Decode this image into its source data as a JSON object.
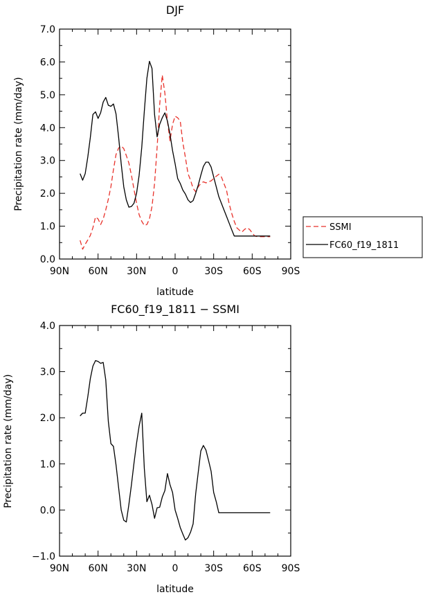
{
  "chart_data": [
    {
      "type": "line",
      "title": "DJF",
      "xlabel": "latitude",
      "ylabel": "Precipitation rate (mm/day)",
      "xlim": [
        -90,
        90
      ],
      "ylim": [
        0,
        7
      ],
      "xticks": [
        -90,
        -60,
        -30,
        0,
        30,
        60,
        90
      ],
      "xtick_labels": [
        "90N",
        "60N",
        "30N",
        "0",
        "30S",
        "60S",
        "90S"
      ],
      "yticks": [
        0,
        1,
        2,
        3,
        4,
        5,
        6,
        7
      ],
      "ytick_labels": [
        "0.0",
        "1.0",
        "2.0",
        "3.0",
        "4.0",
        "5.0",
        "6.0",
        "7.0"
      ],
      "legend": {
        "position": "right",
        "entries": [
          "SSMI",
          "FC60_f19_1811"
        ]
      },
      "series": [
        {
          "name": "SSMI",
          "color": "#e8312a",
          "dash": "dashed",
          "x": [
            -74,
            -72,
            -70,
            -68,
            -66,
            -64,
            -62,
            -60,
            -58,
            -56,
            -54,
            -52,
            -50,
            -48,
            -46,
            -44,
            -42,
            -40,
            -38,
            -36,
            -34,
            -32,
            -30,
            -28,
            -26,
            -24,
            -22,
            -20,
            -18,
            -16,
            -14,
            -12,
            -10,
            -8,
            -6,
            -4,
            -2,
            0,
            2,
            4,
            6,
            8,
            10,
            12,
            14,
            16,
            18,
            20,
            22,
            24,
            26,
            28,
            30,
            32,
            34,
            36,
            38,
            40,
            42,
            44,
            46,
            48,
            50,
            52,
            54,
            56,
            58,
            60,
            62,
            64,
            66,
            68,
            70,
            72,
            74
          ],
          "y": [
            0.57,
            0.3,
            0.45,
            0.58,
            0.72,
            0.95,
            1.28,
            1.22,
            1.05,
            1.22,
            1.5,
            1.82,
            2.2,
            2.72,
            3.18,
            3.38,
            3.44,
            3.36,
            3.15,
            2.92,
            2.55,
            2.12,
            1.7,
            1.35,
            1.15,
            1.02,
            1.05,
            1.22,
            1.6,
            2.3,
            3.4,
            4.7,
            5.6,
            5.05,
            4.2,
            3.6,
            4.1,
            4.35,
            4.3,
            4.2,
            3.55,
            3.1,
            2.6,
            2.4,
            2.15,
            2.05,
            2.2,
            2.3,
            2.35,
            2.32,
            2.35,
            2.38,
            2.45,
            2.52,
            2.58,
            2.5,
            2.3,
            2.1,
            1.7,
            1.4,
            1.15,
            0.95,
            0.88,
            0.82,
            0.9,
            0.95,
            0.9,
            0.8,
            0.7,
            0.68,
            0.68,
            0.68,
            0.68,
            0.68,
            0.68
          ]
        },
        {
          "name": "FC60_f19_1811",
          "color": "#000000",
          "dash": "solid",
          "x": [
            -74,
            -72,
            -70,
            -68,
            -66,
            -64,
            -62,
            -60,
            -58,
            -56,
            -54,
            -52,
            -50,
            -48,
            -46,
            -44,
            -42,
            -40,
            -38,
            -36,
            -34,
            -32,
            -30,
            -28,
            -26,
            -24,
            -22,
            -20,
            -18,
            -16,
            -14,
            -12,
            -10,
            -8,
            -6,
            -4,
            -2,
            0,
            2,
            4,
            6,
            8,
            10,
            12,
            14,
            16,
            18,
            20,
            22,
            24,
            26,
            28,
            30,
            32,
            34,
            36,
            38,
            40,
            42,
            44,
            46,
            48,
            50,
            52,
            54,
            56,
            58,
            60,
            62,
            64,
            66,
            68,
            70,
            72,
            74
          ],
          "y": [
            2.6,
            2.4,
            2.6,
            3.1,
            3.7,
            4.4,
            4.48,
            4.28,
            4.45,
            4.78,
            4.92,
            4.68,
            4.65,
            4.72,
            4.42,
            3.7,
            2.9,
            2.2,
            1.8,
            1.58,
            1.6,
            1.7,
            2.0,
            2.55,
            3.4,
            4.5,
            5.5,
            6.02,
            5.8,
            4.4,
            3.72,
            4.1,
            4.3,
            4.45,
            4.2,
            3.8,
            3.3,
            2.9,
            2.45,
            2.3,
            2.1,
            1.98,
            1.8,
            1.72,
            1.78,
            2.0,
            2.25,
            2.55,
            2.82,
            2.95,
            2.95,
            2.8,
            2.5,
            2.2,
            1.9,
            1.7,
            1.5,
            1.3,
            1.1,
            0.9,
            0.7,
            0.7,
            0.7,
            0.7,
            0.7,
            0.7,
            0.7,
            0.7,
            0.7,
            0.7,
            0.7,
            0.7,
            0.7,
            0.7,
            0.7
          ]
        }
      ]
    },
    {
      "type": "line",
      "title": "FC60_f19_1811 − SSMI",
      "xlabel": "latitude",
      "ylabel": "Precipitation rate (mm/day)",
      "xlim": [
        -90,
        90
      ],
      "ylim": [
        -1,
        4
      ],
      "xticks": [
        -90,
        -60,
        -30,
        0,
        30,
        60,
        90
      ],
      "xtick_labels": [
        "90N",
        "60N",
        "30N",
        "0",
        "30S",
        "60S",
        "90S"
      ],
      "yticks": [
        -1,
        0,
        1,
        2,
        3,
        4
      ],
      "ytick_labels": [
        "−1.0",
        "0.0",
        "1.0",
        "2.0",
        "3.0",
        "4.0"
      ],
      "series": [
        {
          "name": "FC60_f19_1811 - SSMI",
          "color": "#000000",
          "dash": "solid",
          "x": [
            -74,
            -72,
            -70,
            -68,
            -66,
            -64,
            -62,
            -60,
            -58,
            -56,
            -54,
            -52,
            -50,
            -48,
            -46,
            -44,
            -42,
            -40,
            -38,
            -36,
            -34,
            -32,
            -30,
            -28,
            -26,
            -24,
            -22,
            -20,
            -18,
            -16,
            -14,
            -12,
            -10,
            -8,
            -6,
            -4,
            -2,
            0,
            2,
            4,
            6,
            8,
            10,
            12,
            14,
            16,
            18,
            20,
            22,
            24,
            26,
            28,
            30,
            32,
            34,
            36,
            38,
            40,
            42,
            44,
            46,
            48,
            50,
            52,
            54,
            56,
            58,
            60,
            62,
            64,
            66,
            68,
            70,
            72,
            74
          ],
          "y": [
            2.04,
            2.1,
            2.1,
            2.45,
            2.85,
            3.12,
            3.24,
            3.22,
            3.18,
            3.2,
            2.82,
            1.92,
            1.44,
            1.38,
            0.98,
            0.48,
            0.0,
            -0.22,
            -0.26,
            0.12,
            0.55,
            1.02,
            1.45,
            1.82,
            2.1,
            0.9,
            0.18,
            0.32,
            0.12,
            -0.18,
            0.05,
            0.06,
            0.28,
            0.42,
            0.79,
            0.55,
            0.38,
            0.0,
            -0.18,
            -0.38,
            -0.52,
            -0.65,
            -0.6,
            -0.48,
            -0.3,
            0.35,
            0.82,
            1.28,
            1.4,
            1.3,
            1.08,
            0.84,
            0.38,
            0.18,
            -0.06,
            -0.06,
            -0.06,
            -0.06,
            -0.06,
            -0.06,
            -0.06,
            -0.06,
            -0.06,
            -0.06,
            -0.06,
            -0.06,
            -0.06,
            -0.06,
            -0.06,
            -0.06,
            -0.06,
            -0.06,
            -0.06,
            -0.06,
            -0.06
          ]
        }
      ]
    }
  ]
}
